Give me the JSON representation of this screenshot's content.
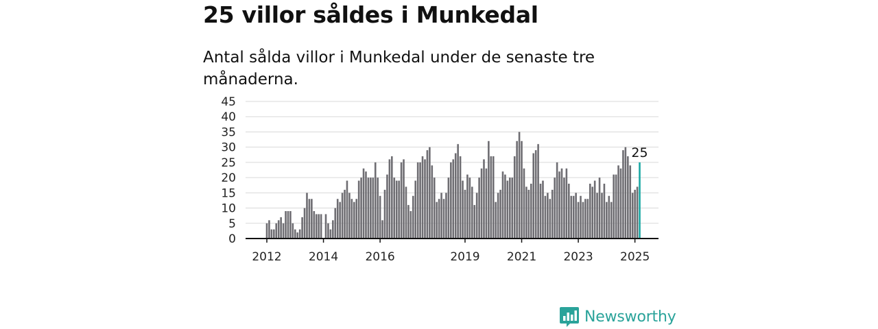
{
  "title": "25 villor såldes i Munkedal",
  "subtitle": "Antal sålda villor i Munkedal under de senaste tre månaderna.",
  "brand": {
    "name": "Newsworthy",
    "icon": "newsworthy-logo-icon"
  },
  "colors": {
    "bar": "#6e6d72",
    "highlight": "#1aa8a4",
    "brand": "#2aa39a"
  },
  "chart_data": {
    "type": "bar",
    "title": "",
    "xlabel": "",
    "ylabel": "",
    "ylim": [
      0,
      45
    ],
    "yticks": [
      0,
      5,
      10,
      15,
      20,
      25,
      30,
      35,
      40,
      45
    ],
    "grid": true,
    "legend": "none",
    "xtick_labels": [
      "2012",
      "2014",
      "2016",
      "2019",
      "2021",
      "2023",
      "2025"
    ],
    "x_start": "2012-01",
    "x_end": "2025-02",
    "highlight_label": "25",
    "values": [
      5,
      6,
      3,
      3,
      5,
      6,
      7,
      5,
      9,
      9,
      9,
      5,
      3,
      2,
      3,
      7,
      10,
      15,
      13,
      13,
      9,
      8,
      8,
      8,
      0,
      8,
      5,
      3,
      6,
      10,
      13,
      12,
      15,
      16,
      19,
      15,
      13,
      12,
      13,
      19,
      20,
      23,
      22,
      20,
      20,
      20,
      25,
      20,
      14,
      6,
      16,
      21,
      26,
      27,
      20,
      19,
      19,
      25,
      26,
      17,
      11,
      9,
      14,
      19,
      25,
      25,
      27,
      26,
      29,
      30,
      24,
      20,
      12,
      13,
      15,
      13,
      15,
      20,
      25,
      26,
      28,
      31,
      27,
      19,
      16,
      21,
      20,
      17,
      11,
      15,
      20,
      23,
      26,
      23,
      32,
      27,
      27,
      12,
      15,
      16,
      22,
      21,
      19,
      20,
      20,
      27,
      32,
      35,
      32,
      23,
      17,
      16,
      18,
      28,
      29,
      31,
      18,
      19,
      14,
      15,
      13,
      16,
      20,
      25,
      22,
      23,
      20,
      23,
      18,
      14,
      14,
      15,
      12,
      14,
      12,
      13,
      13,
      18,
      17,
      19,
      15,
      20,
      15,
      18,
      12,
      14,
      12,
      21,
      21,
      24,
      23,
      29,
      30,
      27,
      24,
      15,
      16,
      17,
      25
    ]
  }
}
